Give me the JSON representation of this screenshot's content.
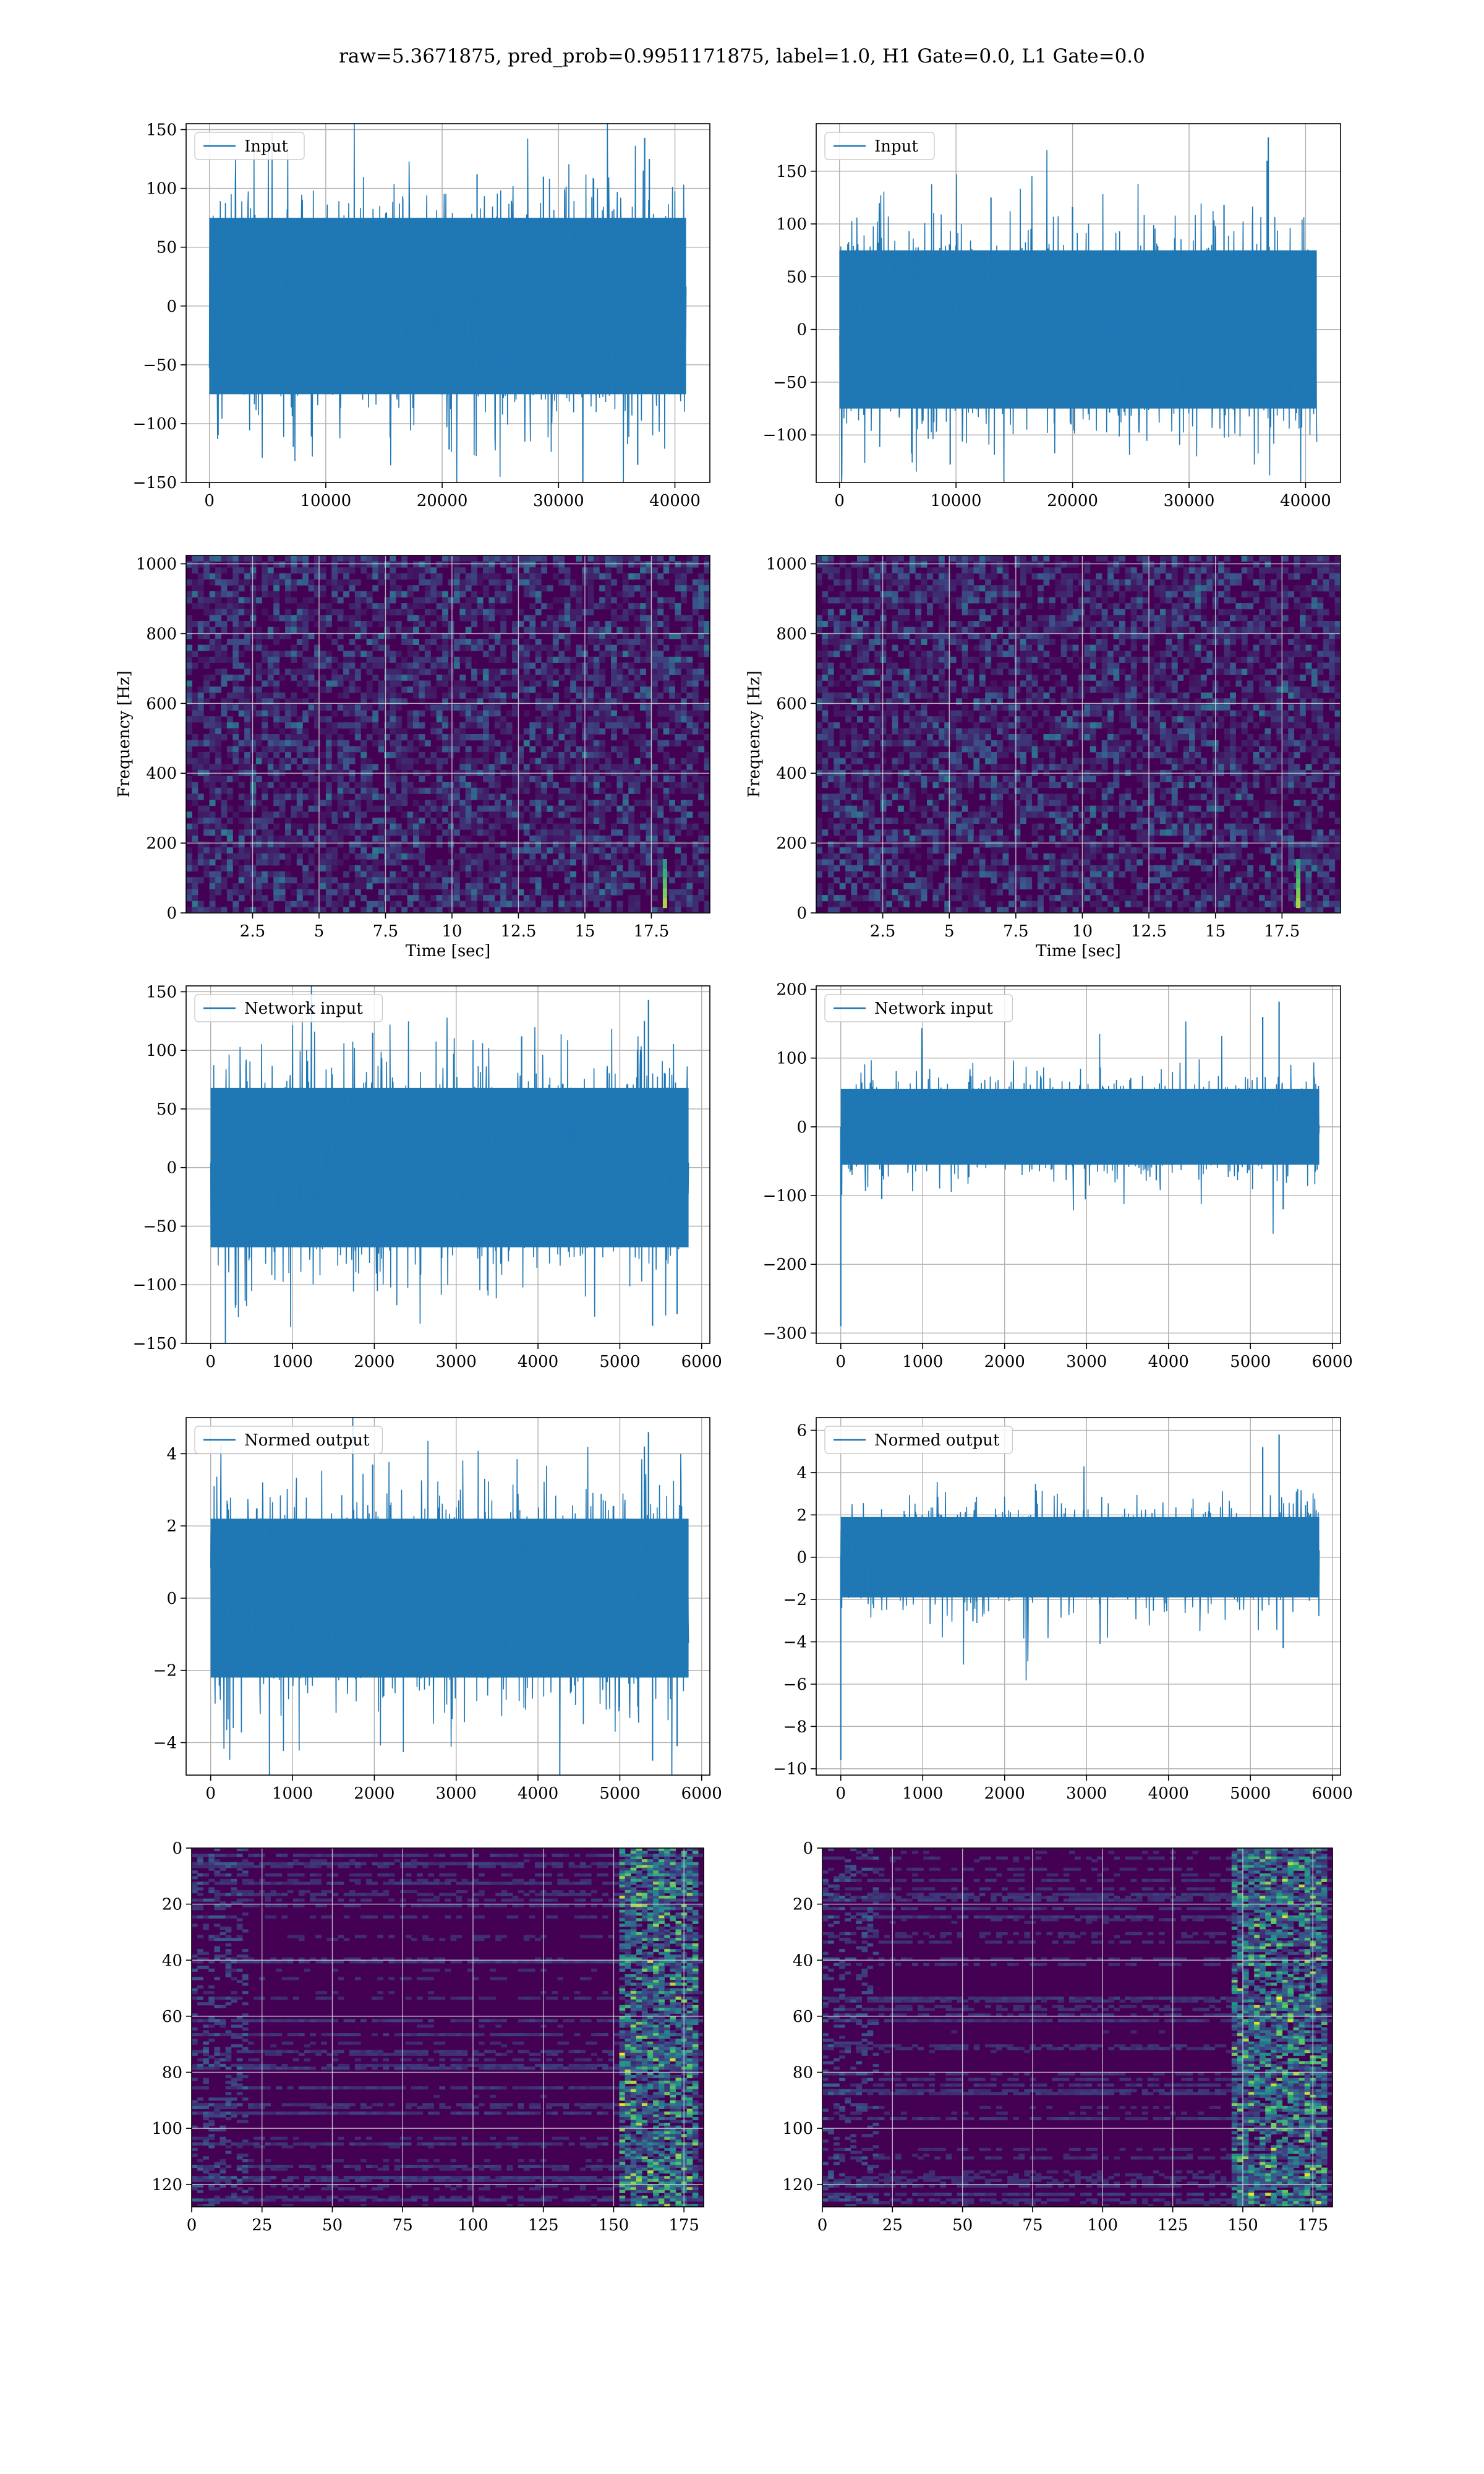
{
  "suptitle": "raw=5.3671875, pred_prob=0.9951171875, label=1.0, H1 Gate=0.0, L1 Gate=0.0",
  "colors": {
    "series": "#1f77b4",
    "grid": "#b0b0b0",
    "viridis_low": "#440154",
    "viridis_mid": "#21918c",
    "viridis_high": "#fde725"
  },
  "chart_data": [
    {
      "id": "input-h1",
      "type": "line",
      "panel": "row1-left",
      "legend": "Input",
      "legend_position": "upper left",
      "grid": true,
      "xlim": [
        -2000,
        43000
      ],
      "ylim": [
        -150,
        155
      ],
      "xticks": [
        0,
        10000,
        20000,
        30000,
        40000
      ],
      "yticks": [
        -150,
        -100,
        -50,
        0,
        50,
        100,
        150
      ],
      "n_points": 40960,
      "band": [
        -75,
        75
      ],
      "peaks": [
        {
          "x": 37400,
          "y": 143
        },
        {
          "x": 36800,
          "y": -135
        },
        {
          "x": 20600,
          "y": -122
        },
        {
          "x": 37800,
          "y": 125
        },
        {
          "x": 23000,
          "y": 112
        },
        {
          "x": 28700,
          "y": 110
        }
      ],
      "xlabel": "",
      "ylabel": ""
    },
    {
      "id": "input-l1",
      "type": "line",
      "panel": "row1-right",
      "legend": "Input",
      "legend_position": "upper left",
      "grid": true,
      "xlim": [
        -2000,
        43000
      ],
      "ylim": [
        -145,
        195
      ],
      "xticks": [
        0,
        10000,
        20000,
        30000,
        40000
      ],
      "yticks": [
        -100,
        -50,
        0,
        50,
        100,
        150
      ],
      "n_points": 40960,
      "band": [
        -75,
        75
      ],
      "peaks": [
        {
          "x": 36800,
          "y": 182
        },
        {
          "x": 36700,
          "y": 160
        },
        {
          "x": 9500,
          "y": -128
        },
        {
          "x": 13000,
          "y": 125
        },
        {
          "x": 20000,
          "y": 116
        },
        {
          "x": 33000,
          "y": 118
        }
      ],
      "xlabel": "",
      "ylabel": ""
    },
    {
      "id": "spec-h1",
      "type": "heatmap",
      "panel": "row2-left",
      "grid": true,
      "xlim": [
        0,
        19.7
      ],
      "ylim": [
        0,
        1024
      ],
      "xticks": [
        2.5,
        5.0,
        7.5,
        10.0,
        12.5,
        15.0,
        17.5
      ],
      "yticks": [
        0,
        200,
        400,
        600,
        800,
        1000
      ],
      "xlabel": "Time [sec]",
      "ylabel": "Frequency [Hz]",
      "hotspots": [
        {
          "t": 18.0,
          "f": 70
        }
      ],
      "colormap": "viridis"
    },
    {
      "id": "spec-l1",
      "type": "heatmap",
      "panel": "row2-right",
      "grid": true,
      "xlim": [
        0,
        19.7
      ],
      "ylim": [
        0,
        1024
      ],
      "xticks": [
        2.5,
        5.0,
        7.5,
        10.0,
        12.5,
        15.0,
        17.5
      ],
      "yticks": [
        0,
        200,
        400,
        600,
        800,
        1000
      ],
      "xlabel": "Time [sec]",
      "ylabel": "Frequency [Hz]",
      "hotspots": [
        {
          "t": 18.1,
          "f": 70
        }
      ],
      "colormap": "viridis"
    },
    {
      "id": "netin-h1",
      "type": "line",
      "panel": "row3-left",
      "legend": "Network input",
      "legend_position": "upper left",
      "grid": true,
      "xlim": [
        -300,
        6100
      ],
      "ylim": [
        -150,
        155
      ],
      "xticks": [
        0,
        1000,
        2000,
        3000,
        4000,
        5000,
        6000
      ],
      "yticks": [
        -150,
        -100,
        -50,
        0,
        50,
        100,
        150
      ],
      "n_points": 5840,
      "band": [
        -68,
        68
      ],
      "peaks": [
        {
          "x": 5350,
          "y": 143
        },
        {
          "x": 5400,
          "y": -135
        },
        {
          "x": 5300,
          "y": 125
        },
        {
          "x": 1980,
          "y": 115
        },
        {
          "x": 5700,
          "y": -125
        },
        {
          "x": 3800,
          "y": 112
        }
      ],
      "xlabel": "",
      "ylabel": ""
    },
    {
      "id": "netin-l1",
      "type": "line",
      "panel": "row3-right",
      "legend": "Network input",
      "legend_position": "upper left",
      "grid": true,
      "xlim": [
        -300,
        6100
      ],
      "ylim": [
        -315,
        205
      ],
      "xticks": [
        0,
        1000,
        2000,
        3000,
        4000,
        5000,
        6000
      ],
      "yticks": [
        -300,
        -200,
        -100,
        0,
        100,
        200
      ],
      "n_points": 5840,
      "band": [
        -55,
        55
      ],
      "peaks": [
        {
          "x": 0,
          "y": -290
        },
        {
          "x": 5350,
          "y": 182
        },
        {
          "x": 5150,
          "y": 160
        },
        {
          "x": 5400,
          "y": -120
        },
        {
          "x": 500,
          "y": -105
        }
      ],
      "xlabel": "",
      "ylabel": ""
    },
    {
      "id": "normed-h1",
      "type": "line",
      "panel": "row4-left",
      "legend": "Normed output",
      "legend_position": "upper left",
      "grid": true,
      "xlim": [
        -300,
        6100
      ],
      "ylim": [
        -4.9,
        5.0
      ],
      "xticks": [
        0,
        1000,
        2000,
        3000,
        4000,
        5000,
        6000
      ],
      "yticks": [
        -4,
        -2,
        0,
        2,
        4
      ],
      "n_points": 5840,
      "band": [
        -2.2,
        2.2
      ],
      "peaks": [
        {
          "x": 5350,
          "y": 4.6
        },
        {
          "x": 5400,
          "y": -4.5
        },
        {
          "x": 5300,
          "y": 4.2
        },
        {
          "x": 1980,
          "y": 3.7
        },
        {
          "x": 5700,
          "y": -4.1
        }
      ],
      "xlabel": "",
      "ylabel": ""
    },
    {
      "id": "normed-l1",
      "type": "line",
      "panel": "row4-right",
      "legend": "Normed output",
      "legend_position": "upper left",
      "grid": true,
      "xlim": [
        -300,
        6100
      ],
      "ylim": [
        -10.3,
        6.6
      ],
      "xticks": [
        0,
        1000,
        2000,
        3000,
        4000,
        5000,
        6000
      ],
      "yticks": [
        -10,
        -8,
        -6,
        -4,
        -2,
        0,
        2,
        4,
        6
      ],
      "n_points": 5840,
      "band": [
        -1.9,
        1.9
      ],
      "peaks": [
        {
          "x": 0,
          "y": -9.6
        },
        {
          "x": 5350,
          "y": 5.8
        },
        {
          "x": 5150,
          "y": 5.2
        },
        {
          "x": 5400,
          "y": -4.3
        }
      ],
      "xlabel": "",
      "ylabel": ""
    },
    {
      "id": "features-h1",
      "type": "heatmap",
      "panel": "row5-left",
      "grid": true,
      "xlim": [
        0,
        182
      ],
      "ylim": [
        128,
        0
      ],
      "xticks": [
        0,
        25,
        50,
        75,
        100,
        125,
        150,
        175
      ],
      "yticks": [
        0,
        20,
        40,
        60,
        80,
        100,
        120
      ],
      "xlabel": "",
      "ylabel": "",
      "active_columns": [
        150,
        182
      ],
      "colormap": "viridis"
    },
    {
      "id": "features-l1",
      "type": "heatmap",
      "panel": "row5-right",
      "grid": true,
      "xlim": [
        0,
        182
      ],
      "ylim": [
        128,
        0
      ],
      "xticks": [
        0,
        25,
        50,
        75,
        100,
        125,
        150,
        175
      ],
      "yticks": [
        0,
        20,
        40,
        60,
        80,
        100,
        120
      ],
      "xlabel": "",
      "ylabel": "",
      "active_columns": [
        145,
        182
      ],
      "colormap": "viridis"
    }
  ]
}
